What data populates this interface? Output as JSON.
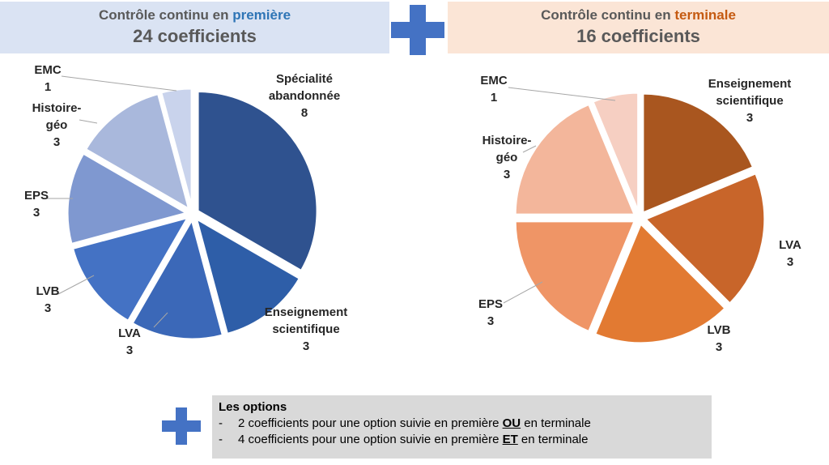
{
  "headers": {
    "left": {
      "prefix": "Contrôle continu en ",
      "highlight": "première",
      "total": "24 coefficients"
    },
    "right": {
      "prefix": "Contrôle continu en ",
      "highlight": "terminale",
      "total": "16 coefficients"
    }
  },
  "colors": {
    "plus": "#4472c4",
    "left_accent": "#2e75b6",
    "right_accent": "#c55a11"
  },
  "chart_data": [
    {
      "type": "pie",
      "title": "",
      "slices": [
        {
          "label": [
            "Spécialité",
            "abandonnée"
          ],
          "value": 8,
          "value_text": "8",
          "color": "#2f528f"
        },
        {
          "label": [
            "Enseignement",
            "scientifique"
          ],
          "value": 3,
          "value_text": "3",
          "color": "#2e5ea8"
        },
        {
          "label": [
            "LVA"
          ],
          "value": 3,
          "value_text": "3",
          "color": "#3b68b8"
        },
        {
          "label": [
            "LVB"
          ],
          "value": 3,
          "value_text": "3",
          "color": "#4472c4"
        },
        {
          "label": [
            "EPS"
          ],
          "value": 3,
          "value_text": "3",
          "color": "#7f98d0"
        },
        {
          "label": [
            "Histoire-",
            "géo"
          ],
          "value": 3,
          "value_text": "3",
          "color": "#a9b8dc"
        },
        {
          "label": [
            "EMC"
          ],
          "value": 1,
          "value_text": "1",
          "color": "#c9d3ec"
        }
      ]
    },
    {
      "type": "pie",
      "title": "",
      "slices": [
        {
          "label": [
            "Enseignement",
            "scientifique"
          ],
          "value": 3,
          "value_text": "3",
          "color": "#a9561f"
        },
        {
          "label": [
            "LVA"
          ],
          "value": 3,
          "value_text": "3",
          "color": "#c8652a"
        },
        {
          "label": [
            "LVB"
          ],
          "value": 3,
          "value_text": "3",
          "color": "#e27a32"
        },
        {
          "label": [
            "EPS"
          ],
          "value": 3,
          "value_text": "3",
          "color": "#ef9566"
        },
        {
          "label": [
            "Histoire-",
            "géo"
          ],
          "value": 3,
          "value_text": "3",
          "color": "#f3b69b"
        },
        {
          "label": [
            "EMC"
          ],
          "value": 1,
          "value_text": "1",
          "color": "#f6cfc2"
        }
      ]
    }
  ],
  "options": {
    "title": "Les options",
    "items": [
      {
        "bullet": "-",
        "before": "2 coefficients pour une option suivie en première ",
        "emph": "OU",
        "after": " en terminale"
      },
      {
        "bullet": "-",
        "before": "4 coefficients pour une option suivie en première ",
        "emph": "ET",
        "after": " en terminale"
      }
    ]
  }
}
